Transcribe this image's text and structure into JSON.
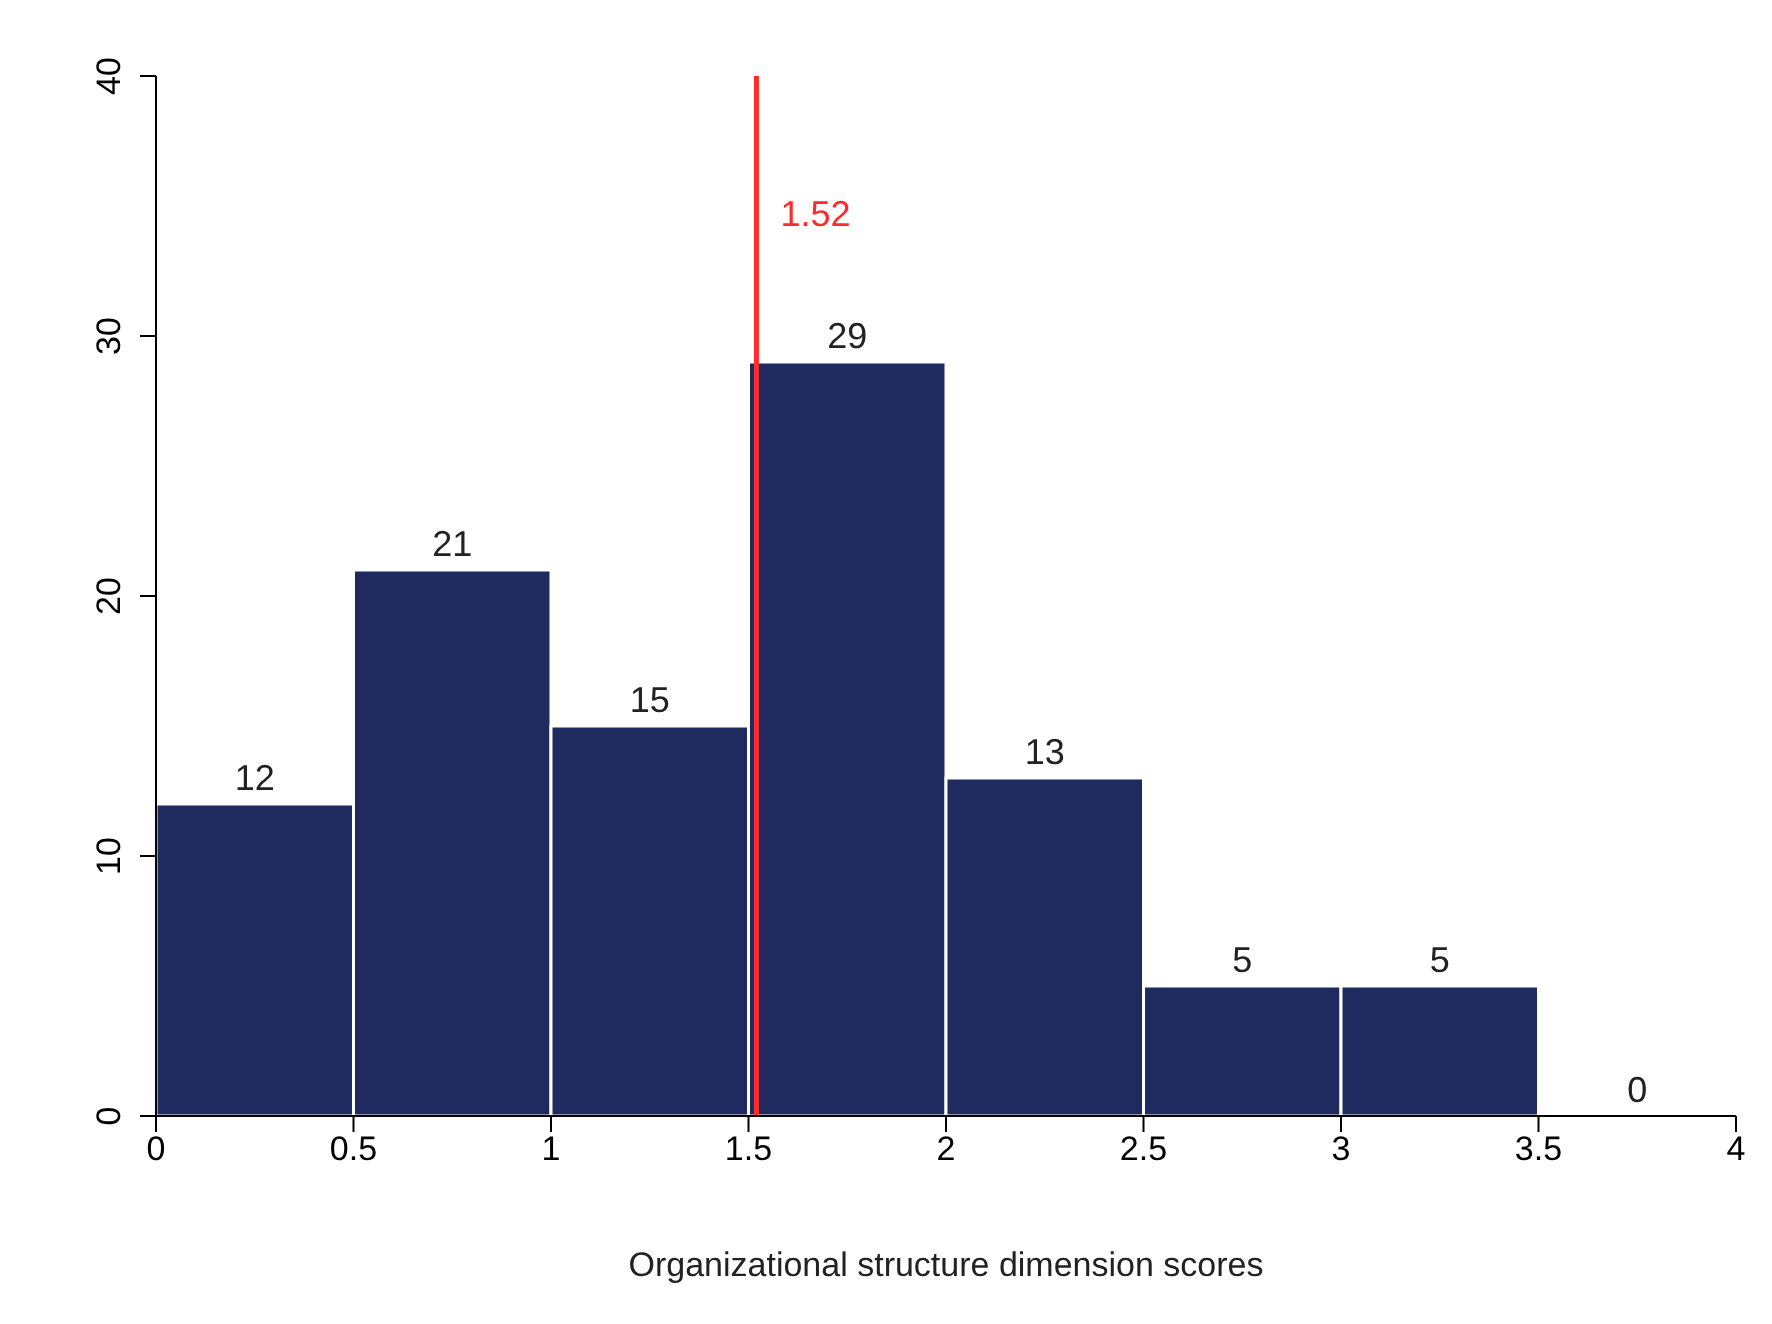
{
  "chart_data": {
    "type": "histogram",
    "xlabel": "Organizational structure dimension scores",
    "bins": [
      0,
      0.5,
      1,
      1.5,
      2,
      2.5,
      3,
      3.5,
      4
    ],
    "values": [
      12,
      21,
      15,
      29,
      13,
      5,
      5,
      0
    ],
    "color": "#1f2a5e",
    "xlim": [
      0,
      4
    ],
    "xticks": [
      0,
      0.5,
      1,
      1.5,
      2,
      2.5,
      3,
      3.5,
      4
    ],
    "ylim": [
      0,
      40
    ],
    "yticks": [
      0,
      10,
      20,
      30,
      40
    ],
    "data_labels": true,
    "ref_lines": [
      {
        "axis": "x",
        "value": 1.52,
        "label": "1.52",
        "color": "#ff2a2a"
      }
    ]
  }
}
